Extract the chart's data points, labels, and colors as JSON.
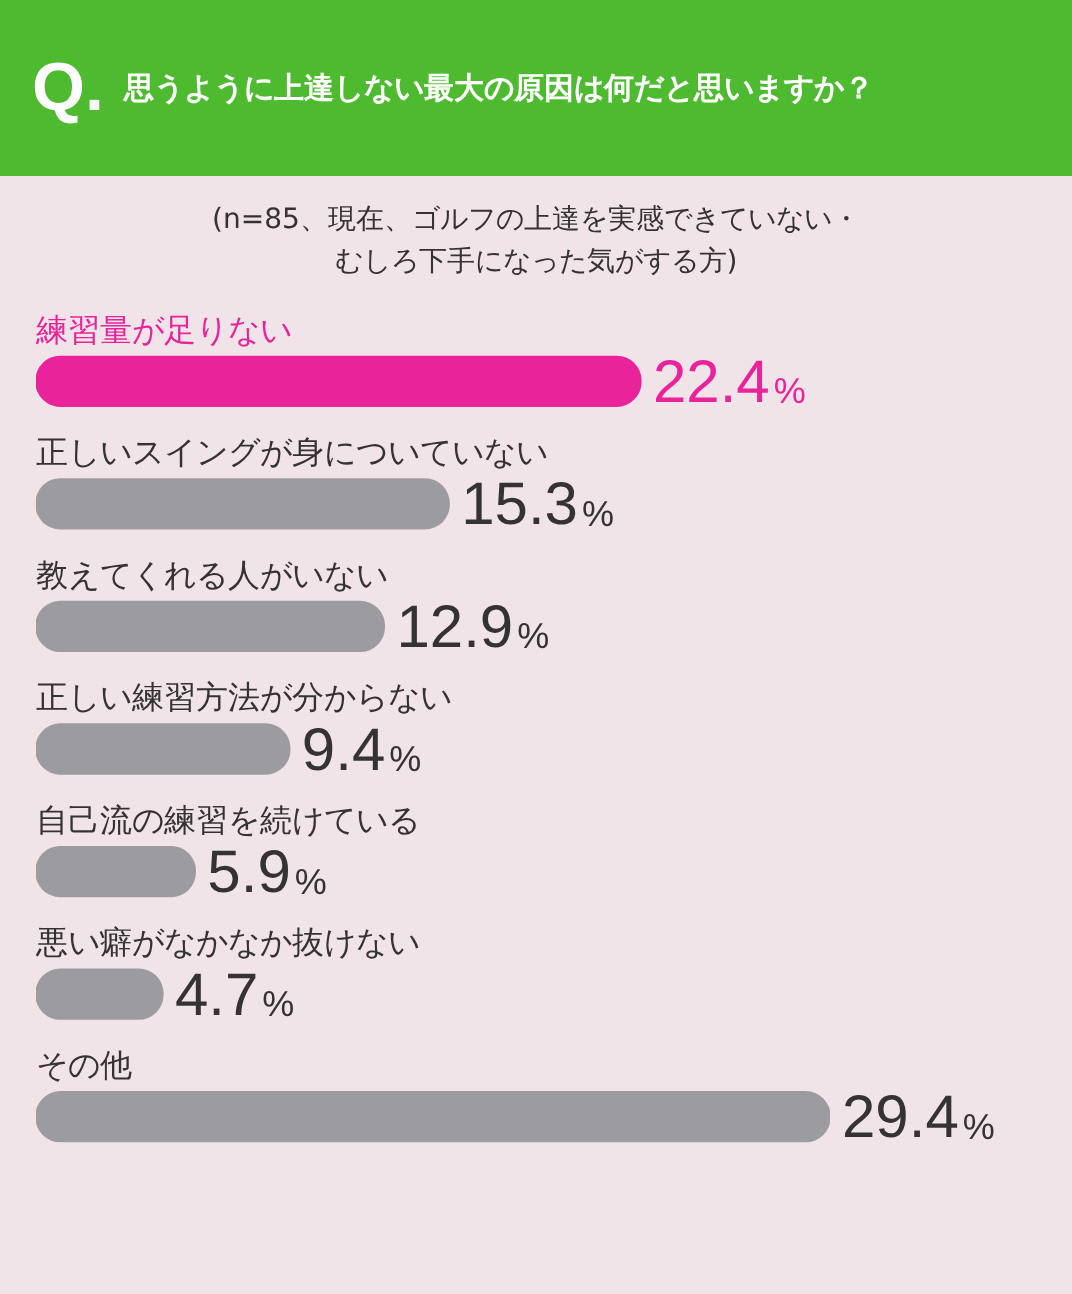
{
  "chart_data": {
    "type": "bar",
    "orientation": "horizontal",
    "title": "思うように上達しない最大の原因は何だと思いますか？",
    "subtitle": "(n=85、現在、ゴルフの上達を実感できていない・むしろ下手になった気がする方)",
    "annotations": [
      "Q."
    ],
    "categories": [
      "練習量が足りない",
      "正しいスイングが身についていない",
      "教えてくれる人がいない",
      "正しい練習方法が分からない",
      "自己流の練習を続けている",
      "悪い癖がなかなか抜けない",
      "その他"
    ],
    "values": [
      22.4,
      15.3,
      12.9,
      9.4,
      5.9,
      4.7,
      29.4
    ],
    "colors": [
      "#e9239a",
      "#9c9b9f",
      "#9c9b9f",
      "#9c9b9f",
      "#9c9b9f",
      "#9c9b9f",
      "#9c9b9f"
    ],
    "value_labels": [
      "22.4%",
      "15.3%",
      "12.9%",
      "9.4%",
      "5.9%",
      "4.7%",
      "29.4%"
    ],
    "relative": false,
    "grid": false,
    "legend": false
  }
}
